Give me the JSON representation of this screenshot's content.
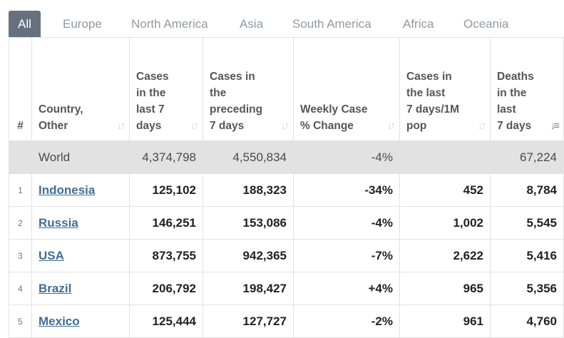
{
  "tabs": [
    "All",
    "Europe",
    "North America",
    "Asia",
    "South America",
    "Africa",
    "Oceania"
  ],
  "headers": {
    "index": "#",
    "country": [
      "Country,",
      "Other"
    ],
    "cases_7": [
      "Cases",
      "in the",
      "last 7",
      "days"
    ],
    "cases_prev": [
      "Cases in",
      "the",
      "preceding",
      "7 days"
    ],
    "change": [
      "Weekly Case",
      "% Change"
    ],
    "cases_per_m": [
      "Cases in",
      "the last",
      "7 days/1M",
      "pop"
    ],
    "deaths_7": [
      "Deaths",
      "in the",
      "last",
      "7 days"
    ]
  },
  "world": {
    "country": "World",
    "cases_7": "4,374,798",
    "cases_prev": "4,550,834",
    "change": "-4%",
    "cases_per_m": "",
    "deaths_7": "67,224"
  },
  "rows": [
    {
      "index": "1",
      "country": "Indonesia",
      "cases_7": "125,102",
      "cases_prev": "188,323",
      "change": "-34%",
      "cases_per_m": "452",
      "deaths_7": "8,784"
    },
    {
      "index": "2",
      "country": "Russia",
      "cases_7": "146,251",
      "cases_prev": "153,086",
      "change": "-4%",
      "cases_per_m": "1,002",
      "deaths_7": "5,545"
    },
    {
      "index": "3",
      "country": "USA",
      "cases_7": "873,755",
      "cases_prev": "942,365",
      "change": "-7%",
      "cases_per_m": "2,622",
      "deaths_7": "5,416"
    },
    {
      "index": "4",
      "country": "Brazil",
      "cases_7": "206,792",
      "cases_prev": "198,427",
      "change": "+4%",
      "cases_per_m": "965",
      "deaths_7": "5,356"
    },
    {
      "index": "5",
      "country": "Mexico",
      "cases_7": "125,444",
      "cases_prev": "127,727",
      "change": "-2%",
      "cases_per_m": "961",
      "deaths_7": "4,760"
    }
  ],
  "colors": {
    "active_tab_bg": "#65727e",
    "world_row_bg": "#e2e2e2",
    "link": "#3f6e94"
  }
}
